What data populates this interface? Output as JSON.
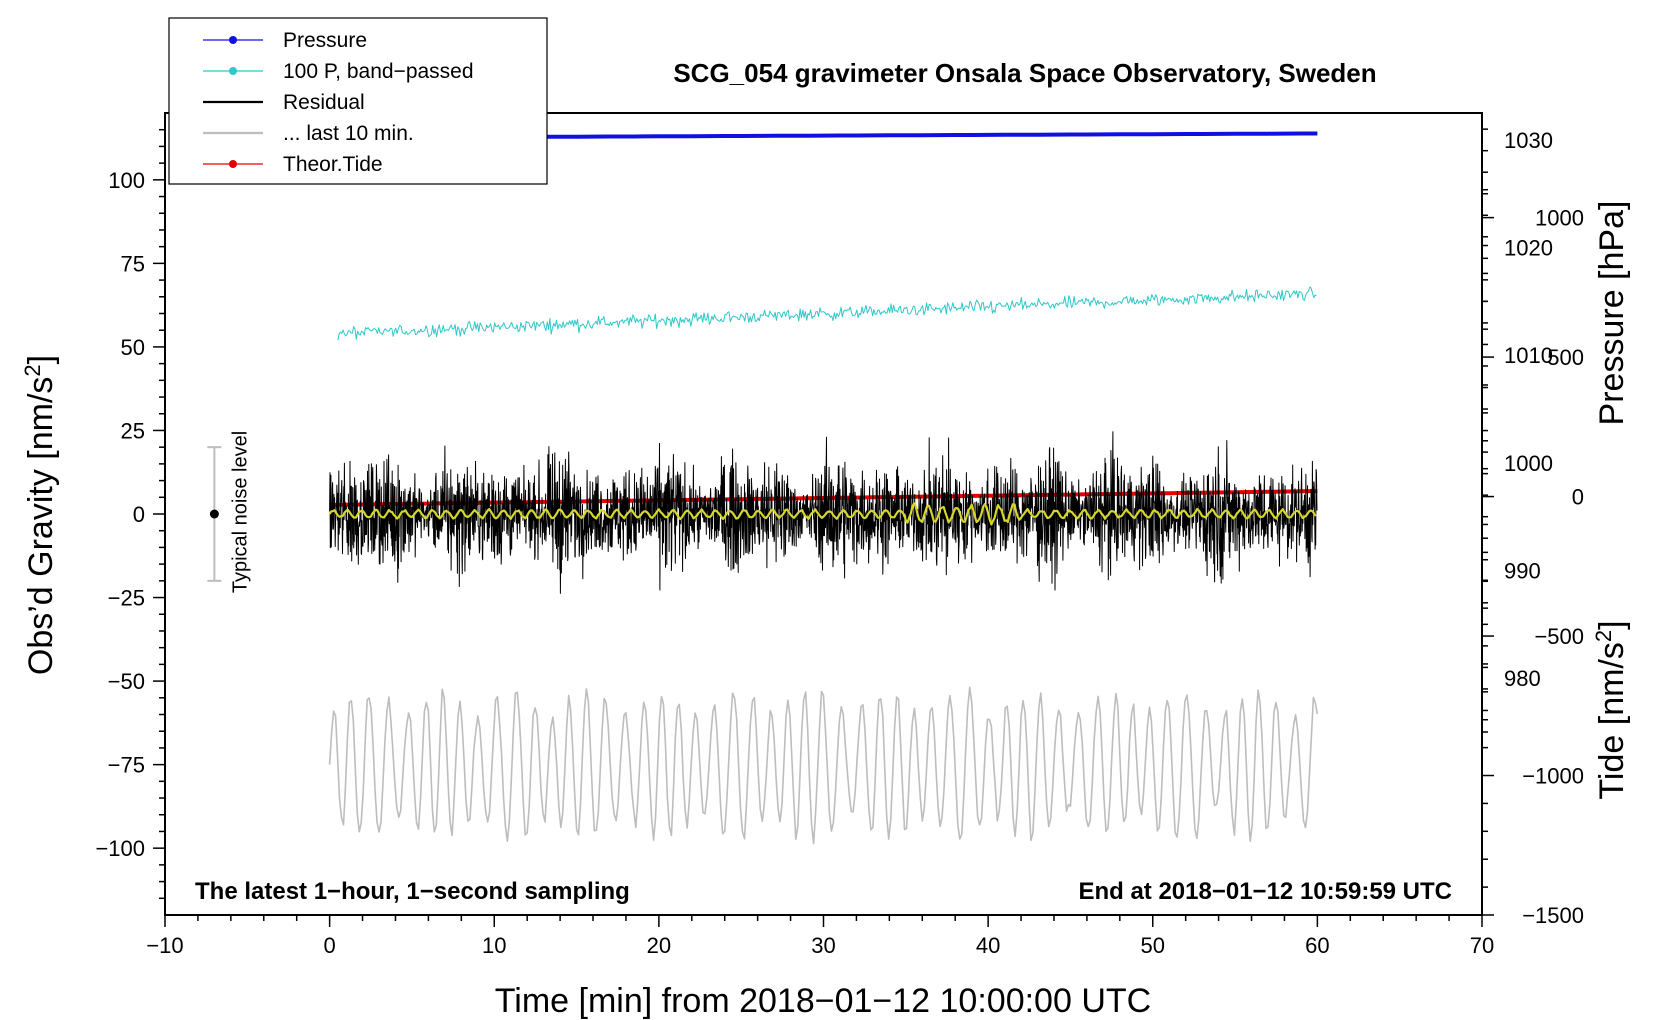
{
  "chart_data": {
    "type": "line",
    "title": "SCG_054 gravimeter Onsala Space Observatory, Sweden",
    "xlabel": "Time [min] from 2018−01−12 10:00:00 UTC",
    "ylabel_left_main": "Obs’d Gravity [nm/s",
    "ylabel_left_sup": "2",
    "ylabel_left_end": "]",
    "ylabel_right_top": "Pressure [hPa]",
    "ylabel_right_bottom_main": "Tide [nm/s",
    "ylabel_right_bottom_sup": "2",
    "ylabel_right_bottom_end": "]",
    "xlim": [
      -10,
      70
    ],
    "ylim_left": [
      -120,
      120
    ],
    "ylim_right_pressure": [
      958,
      1032.5
    ],
    "ylim_right_tide": [
      -1500,
      1375
    ],
    "x_ticks": [
      -10,
      0,
      10,
      20,
      30,
      40,
      50,
      60,
      70
    ],
    "x_tick_labels": [
      "−10",
      "0",
      "10",
      "20",
      "30",
      "40",
      "50",
      "60",
      "70"
    ],
    "y_left_ticks": [
      100,
      75,
      50,
      25,
      0,
      -25,
      -50,
      -75,
      -100
    ],
    "y_left_tick_labels": [
      "100",
      "75",
      "50",
      "25",
      "0",
      "−25",
      "−50",
      "−75",
      "−100"
    ],
    "y_right_pressure_ticks": [
      1030,
      1020,
      1010,
      1000,
      990,
      980
    ],
    "y_right_pressure_tick_labels": [
      "1030",
      "1020",
      "1010",
      "1000",
      "990",
      "980"
    ],
    "y_right_tide_ticks": [
      1000,
      500,
      0,
      -500,
      -1000,
      -1500
    ],
    "y_right_tide_tick_labels": [
      "1000",
      "500",
      "0",
      "−500",
      "−1000",
      "−1500"
    ],
    "legend_position": "top-left",
    "legend": [
      {
        "label": "Pressure",
        "color": "#1010e0",
        "marker": true
      },
      {
        "label": "100 P, band−passed",
        "color": "#2ec8c8",
        "marker": true
      },
      {
        "label": "Residual",
        "color": "#000000",
        "marker": false
      },
      {
        "label": "... last 10 min.",
        "color": "#bdbdbd",
        "marker": false
      },
      {
        "label": "Theor.Tide",
        "color": "#e60000",
        "marker": true
      }
    ],
    "annotations": {
      "bottom_left": "The latest 1−hour, 1−second sampling",
      "bottom_right": "End at 2018−01−12 10:59:59 UTC",
      "noise_label": "Typical noise level"
    },
    "noise_bar": {
      "x": -7,
      "center": 0,
      "half_range": 20
    },
    "series": [
      {
        "name": "Pressure",
        "axis": "pressure",
        "color": "#1010e0",
        "x_range": [
          0,
          60
        ],
        "start": 1030.2,
        "end": 1030.6
      },
      {
        "name": "100 P, band-passed",
        "axis": "left",
        "color": "#2ec8c8",
        "x_range": [
          0.5,
          60
        ],
        "start": 54,
        "end": 66,
        "noise_amplitude": 1.6
      },
      {
        "name": "Residual",
        "axis": "left",
        "color": "#000000",
        "x_range": [
          0,
          60
        ],
        "center": 0,
        "noise_amplitude": 13,
        "max_abs": 30
      },
      {
        "name": "Residual, smoothed",
        "axis": "left",
        "color": "#d6d62c",
        "x_range": [
          0,
          60
        ],
        "center": 0,
        "noise_amplitude": 1.5
      },
      {
        "name": "... last 10 min.",
        "axis": "left",
        "color": "#bdbdbd",
        "x_range": [
          0,
          60
        ],
        "center": -75,
        "oscillation_amplitude": 15,
        "min": -104,
        "max": -47
      },
      {
        "name": "Theor.Tide",
        "axis": "tide",
        "color": "#e60000",
        "x_range": [
          0,
          60.5
        ],
        "start": -30,
        "end": 20
      }
    ],
    "colors": {
      "pressure": "#1010e0",
      "band_passed": "#2ec8c8",
      "residual": "#000000",
      "smoothed": "#d6d62c",
      "last10": "#bdbdbd",
      "tide": "#e60000",
      "noise_bar": "#bdbdbd"
    }
  }
}
